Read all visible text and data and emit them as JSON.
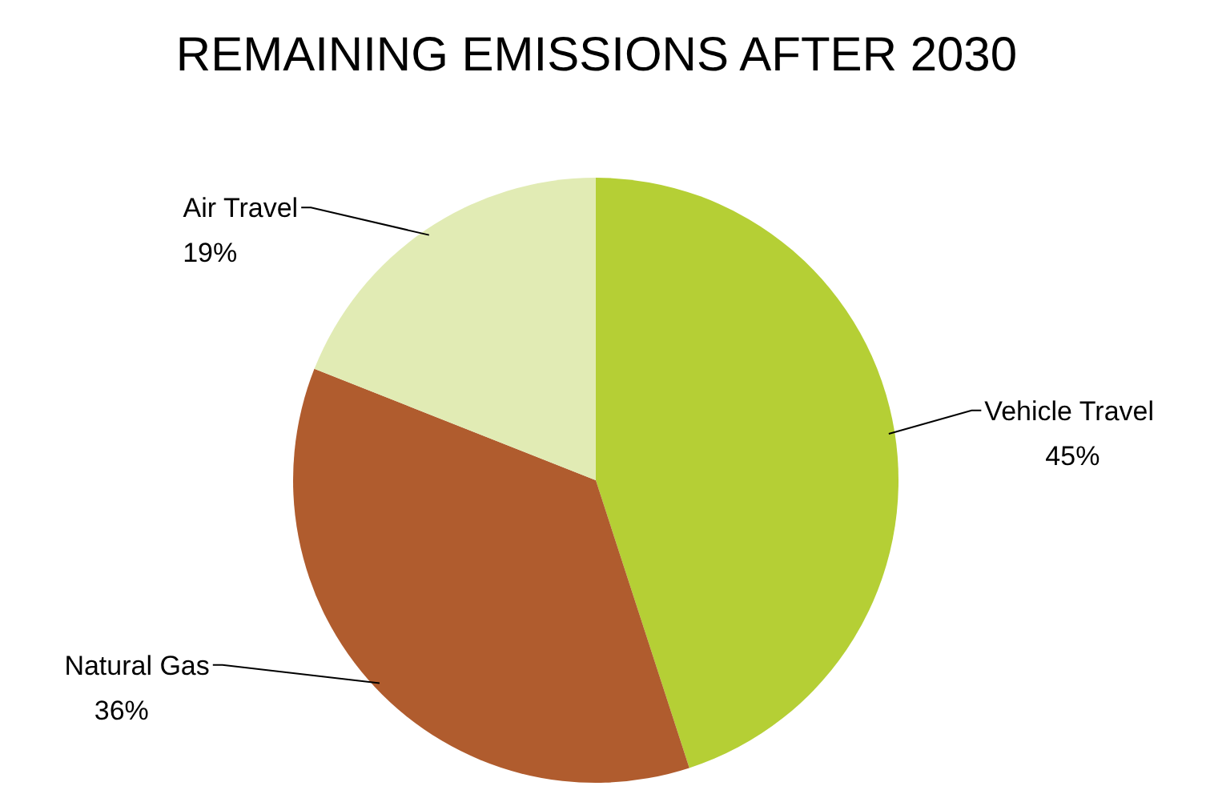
{
  "chart_data": {
    "type": "pie",
    "title": "REMAINING EMISSIONS AFTER 2030",
    "categories": [
      "Vehicle Travel",
      "Natural Gas",
      "Air Travel"
    ],
    "values": [
      45,
      36,
      19
    ],
    "colors": [
      "#b5cf35",
      "#b05c2e",
      "#e1ebb4"
    ],
    "value_labels": [
      "45%",
      "36%",
      "19%"
    ]
  }
}
